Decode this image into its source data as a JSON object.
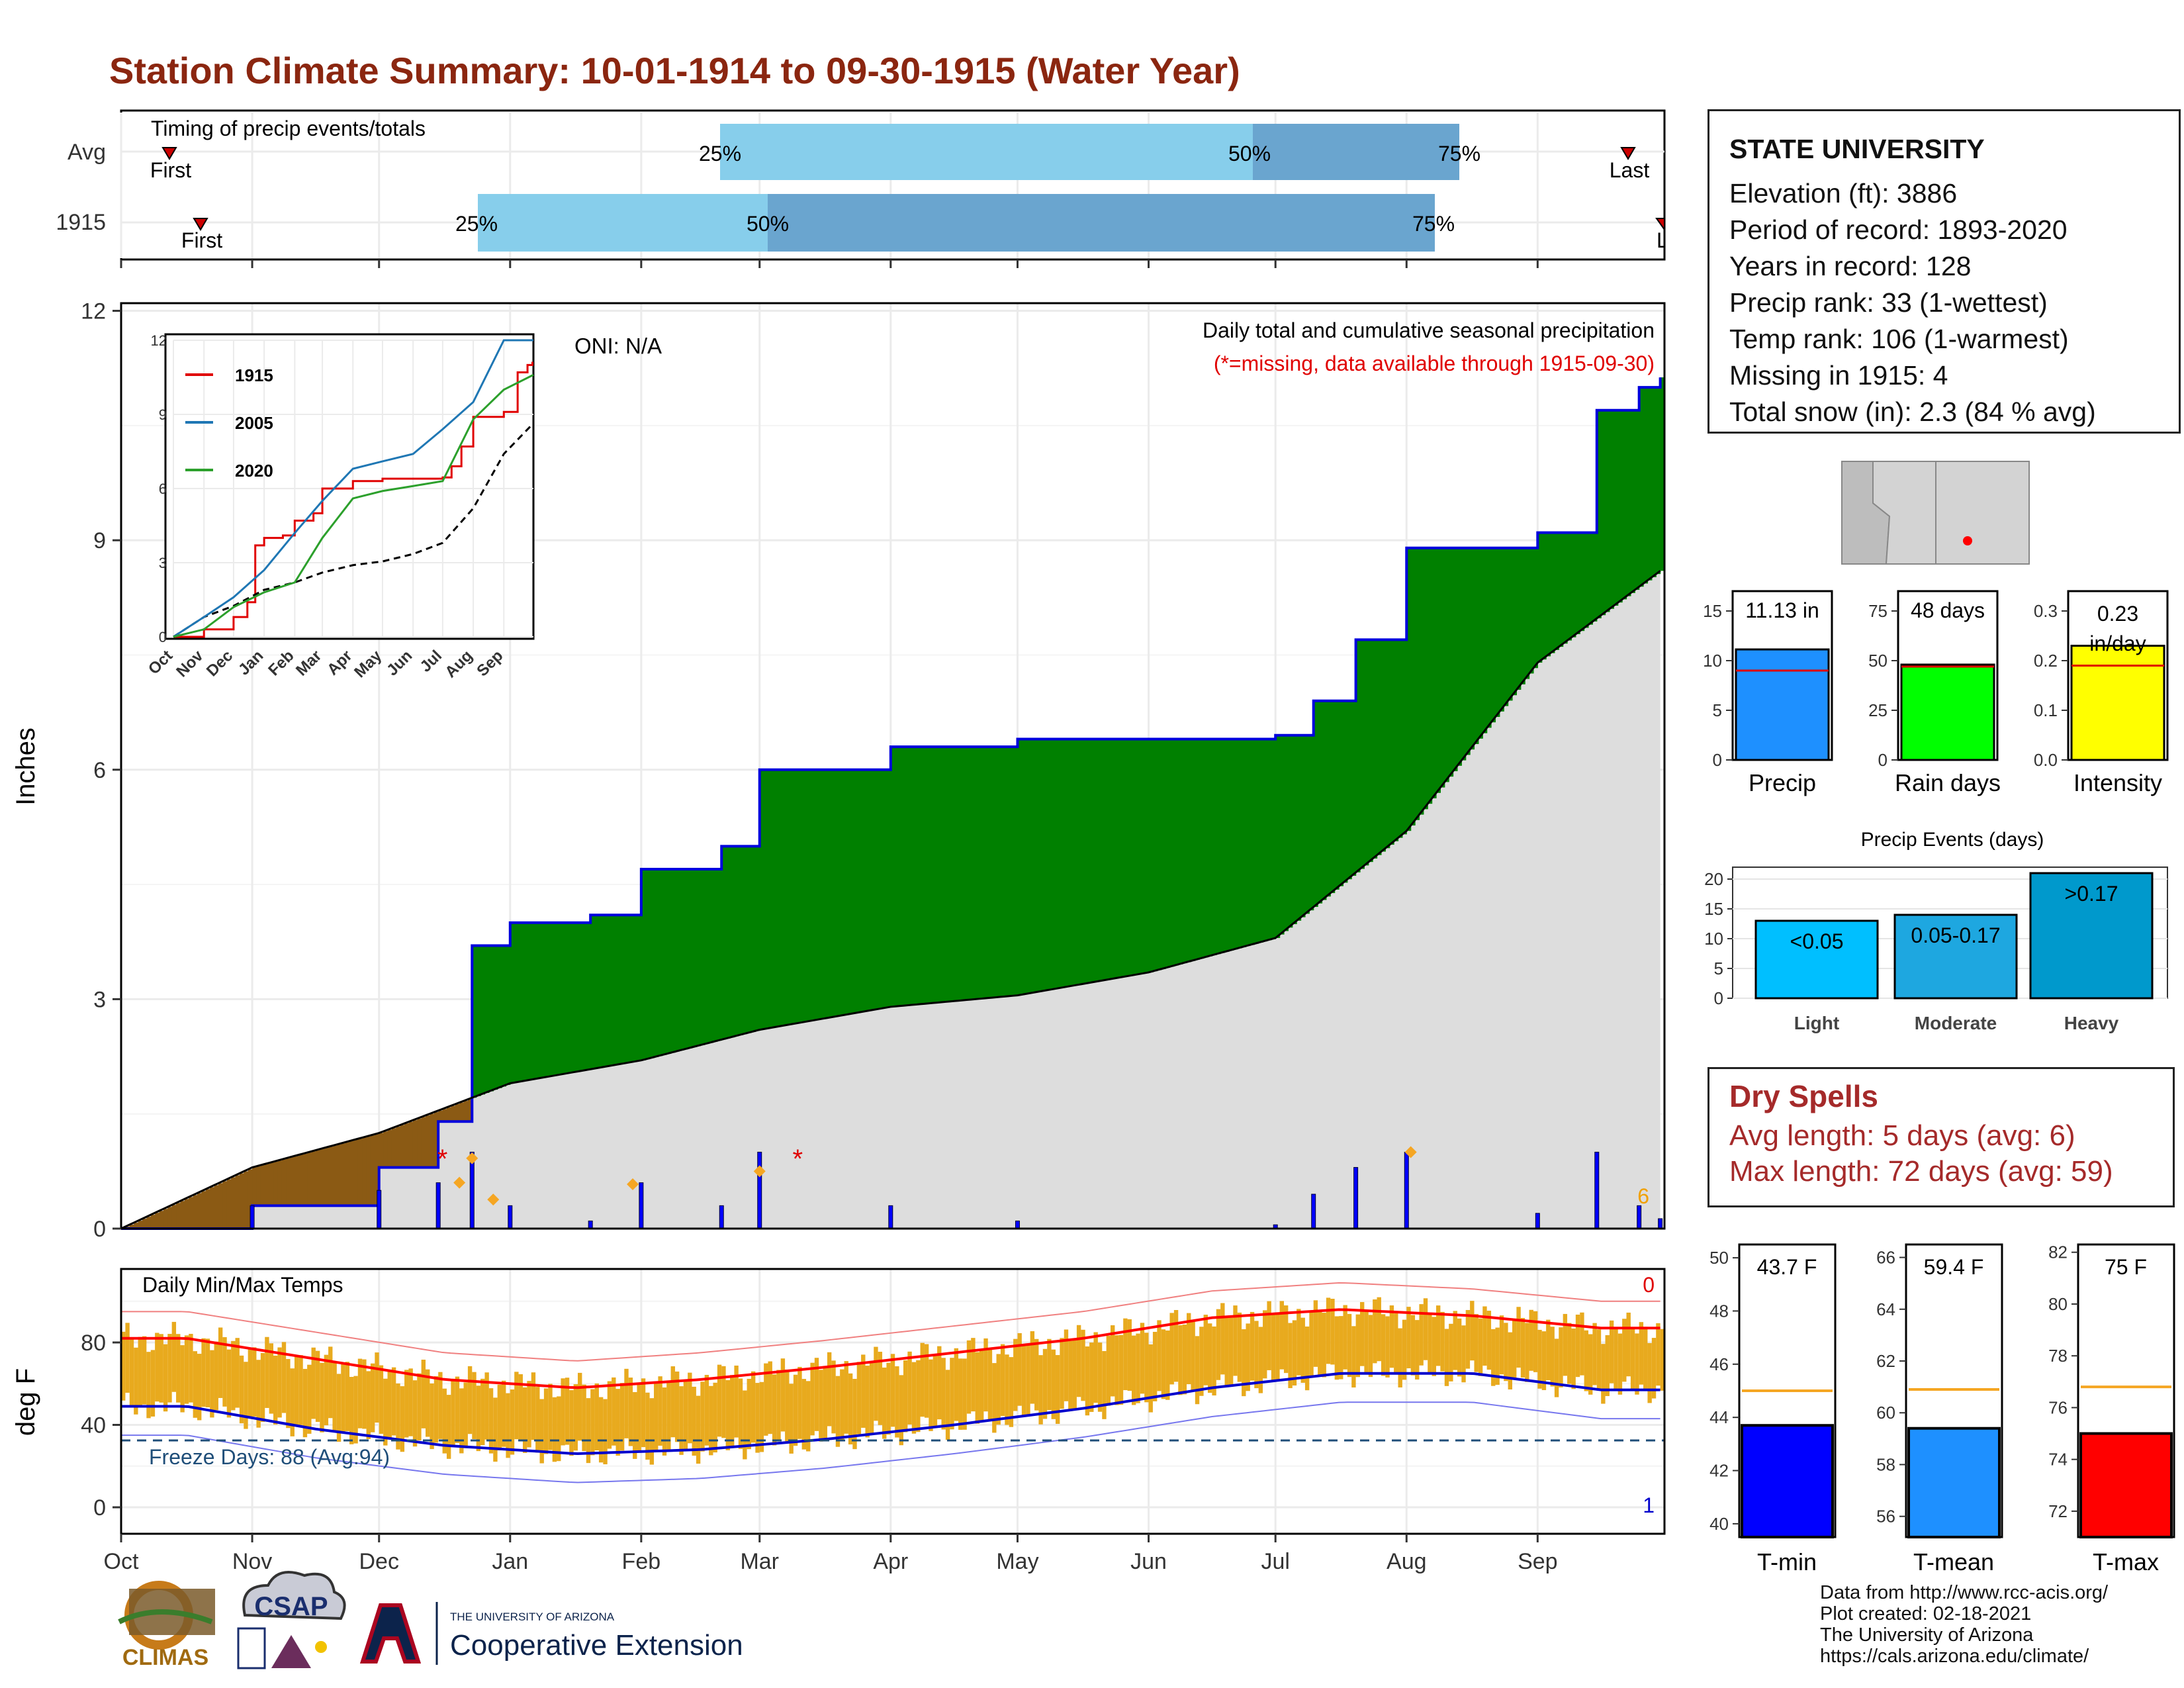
{
  "title": "Station Climate Summary: 10-01-1914 to 09-30-1915 (Water Year)",
  "timing": {
    "header": "Timing of precip events/totals",
    "rows": [
      {
        "label": "Avg",
        "first_label": "First",
        "last_label": "Last",
        "p25": "25%",
        "p50": "50%",
        "p75": "75%"
      },
      {
        "label": "1915",
        "first_label": "First",
        "last_label": "Last",
        "p25": "25%",
        "p50": "50%",
        "p75": "75%"
      }
    ]
  },
  "station": {
    "name": "STATE UNIVERSITY",
    "lines": [
      "Elevation (ft): 3886",
      "Period of record: 1893-2020",
      "Years in record: 128",
      "Precip rank: 33 (1-wettest)",
      "Temp rank: 106 (1-warmest)",
      "Missing in 1915: 4",
      "Total snow (in): 2.3 (84 % avg)"
    ]
  },
  "main_chart": {
    "ylabel": "Inches",
    "yticks": [
      "0",
      "3",
      "6",
      "9",
      "12"
    ],
    "oni": "ONI: N/A",
    "subtitle": "Daily total and cumulative seasonal precipitation",
    "missing_note": "(*=missing, data available through 1915-09-30)",
    "corner_number": "6"
  },
  "inset": {
    "legend": [
      "1915",
      "2005",
      "2020"
    ],
    "yticks": [
      "0",
      "3",
      "6",
      "9",
      "12"
    ],
    "xticks": [
      "Oct",
      "Nov",
      "Dec",
      "Jan",
      "Feb",
      "Mar",
      "Apr",
      "May",
      "Jun",
      "Jul",
      "Aug",
      "Sep"
    ]
  },
  "temp_chart": {
    "ylabel": "deg F",
    "header": "Daily Min/Max Temps",
    "yticks": [
      "0",
      "40",
      "80"
    ],
    "freeze": "Freeze Days: 88 (Avg:94)",
    "top_count": "0",
    "bottom_count": "1"
  },
  "months": [
    "Oct",
    "Nov",
    "Dec",
    "Jan",
    "Feb",
    "Mar",
    "Apr",
    "May",
    "Jun",
    "Jul",
    "Aug",
    "Sep"
  ],
  "mini_bars": [
    {
      "label": "Precip",
      "value_text": "11.13 in",
      "yticks": [
        "0",
        "5",
        "10",
        "15"
      ],
      "color": "#1E90FF"
    },
    {
      "label": "Rain days",
      "value_text": "48 days",
      "yticks": [
        "0",
        "25",
        "50",
        "75"
      ],
      "color": "#00FF00"
    },
    {
      "label": "Intensity",
      "value_text": "0.23 in/day",
      "yticks": [
        "0.0",
        "0.1",
        "0.2",
        "0.3"
      ],
      "color": "#FFFF00"
    }
  ],
  "precip_events": {
    "title": "Precip Events (days)",
    "yticks": [
      "0",
      "5",
      "10",
      "15",
      "20"
    ],
    "bars": [
      {
        "cat": "Light",
        "label": "<0.05"
      },
      {
        "cat": "Moderate",
        "label": "0.05-0.17"
      },
      {
        "cat": "Heavy",
        "label": ">0.17"
      }
    ]
  },
  "dry_spells": {
    "title": "Dry Spells",
    "avg_line": "Avg length: 5 days (avg: 6)",
    "max_line": "Max length: 72 days (avg: 59)"
  },
  "temp_bars": [
    {
      "label": "T-min",
      "value_text": "43.7 F",
      "yticks": [
        "40",
        "42",
        "44",
        "46",
        "48",
        "50"
      ],
      "color": "#0000FF"
    },
    {
      "label": "T-mean",
      "value_text": "59.4 F",
      "yticks": [
        "56",
        "58",
        "60",
        "62",
        "64",
        "66"
      ],
      "color": "#1E90FF"
    },
    {
      "label": "T-max",
      "value_text": "75 F",
      "yticks": [
        "72",
        "74",
        "76",
        "78",
        "80",
        "82"
      ],
      "color": "#FF0000"
    }
  ],
  "footer": {
    "lines": [
      "Data from http://www.rcc-acis.org/",
      "Plot created: 02-18-2021",
      "The University of Arizona",
      "https://cals.arizona.edu/climate/"
    ],
    "logo_climas": "CLIMAS",
    "logo_csap": "CSAP",
    "logo_ua_small": "THE UNIVERSITY OF ARIZONA",
    "logo_ua_big": "Cooperative Extension"
  },
  "colors": {
    "title": "#8B2610",
    "green_surplus": "#008000",
    "brown_deficit": "#8B5A14",
    "avg_fill": "#DDDDDD",
    "timing_light": "#87CEEB",
    "timing_dark": "#6AA5CF",
    "temp_bars": "#E8AA1E",
    "dry_text": "#A52A2A"
  },
  "chart_data": [
    {
      "type": "area",
      "title": "Daily total and cumulative seasonal precipitation",
      "ylabel": "Inches",
      "ylim": [
        0,
        12
      ],
      "series": [
        {
          "name": "1915",
          "x": [
            "Oct 1",
            "Nov 1",
            "Dec 1",
            "Dec 15",
            "Dec 23",
            "Jan 1",
            "Jan 20",
            "Feb 1",
            "Feb 20",
            "Mar 1",
            "Apr 1",
            "May 1",
            "Jun 1",
            "Jul 1",
            "Jul 10",
            "Jul 20",
            "Aug 1",
            "Aug 20",
            "Sep 1",
            "Sep 15",
            "Sep 25",
            "Sep 30"
          ],
          "values": [
            0,
            0.3,
            0.8,
            1.4,
            3.7,
            4.0,
            4.1,
            4.7,
            5.0,
            6.0,
            6.3,
            6.4,
            6.4,
            6.45,
            6.9,
            7.7,
            8.9,
            8.9,
            9.1,
            10.7,
            11.0,
            11.13
          ]
        },
        {
          "name": "average",
          "x": [
            "Oct 1",
            "Nov 1",
            "Dec 1",
            "Jan 1",
            "Feb 1",
            "Mar 1",
            "Apr 1",
            "May 1",
            "Jun 1",
            "Jul 1",
            "Aug 1",
            "Sep 1",
            "Sep 30"
          ],
          "values": [
            0,
            0.8,
            1.25,
            1.9,
            2.2,
            2.6,
            2.9,
            3.05,
            3.35,
            3.8,
            5.2,
            7.4,
            8.6
          ]
        }
      ]
    },
    {
      "type": "line",
      "title": "Daily Min/Max Temps",
      "ylabel": "deg F",
      "x": [
        "Oct",
        "Nov",
        "Dec",
        "Jan",
        "Feb",
        "Mar",
        "Apr",
        "May",
        "Jun",
        "Jul",
        "Aug",
        "Sep"
      ],
      "series": [
        {
          "name": "avg max",
          "values": [
            82,
            72,
            62,
            58,
            62,
            68,
            75,
            82,
            92,
            96,
            93,
            87
          ]
        },
        {
          "name": "avg min",
          "values": [
            49,
            38,
            30,
            26,
            28,
            33,
            40,
            48,
            58,
            65,
            65,
            57
          ]
        }
      ]
    },
    {
      "type": "bar",
      "title": "Precip Events (days)",
      "categories": [
        "Light",
        "Moderate",
        "Heavy"
      ],
      "values": [
        13,
        14,
        21
      ],
      "ylim": [
        0,
        22
      ]
    },
    {
      "type": "bar",
      "categories": [
        "Precip",
        "Rain days",
        "Intensity"
      ],
      "values": [
        11.13,
        48,
        0.23
      ],
      "averages": [
        9,
        47,
        0.19
      ]
    },
    {
      "type": "bar",
      "categories": [
        "T-min",
        "T-mean",
        "T-max"
      ],
      "values": [
        43.7,
        59.4,
        75
      ],
      "averages": [
        45,
        60.9,
        76.8
      ]
    }
  ]
}
